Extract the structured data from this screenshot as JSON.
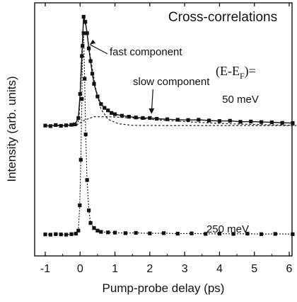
{
  "chart_data": {
    "type": "scatter",
    "title": "Cross-correlations",
    "xlabel": "Pump-probe delay (ps)",
    "ylabel": "Intensity (arb. units)",
    "xlim": [
      -1,
      6
    ],
    "ylim": [
      0,
      1
    ],
    "x_ticks": [
      "-1",
      "0",
      "1",
      "2",
      "3",
      "4",
      "5",
      "6"
    ],
    "grid": false,
    "legend_label": "(E-E",
    "legend_sub": "F",
    "legend_suffix": ")=",
    "annotations": [
      {
        "text": "fast component",
        "x": 0.25,
        "y": 0.86
      },
      {
        "text": "slow component",
        "x": 2.05,
        "y": 0.64
      }
    ],
    "series": [
      {
        "name": "50 meV",
        "label": "50 meV",
        "points": [
          [
            -1.0,
            0.515
          ],
          [
            -0.85,
            0.513
          ],
          [
            -0.7,
            0.517
          ],
          [
            -0.55,
            0.514
          ],
          [
            -0.4,
            0.516
          ],
          [
            -0.25,
            0.518
          ],
          [
            -0.15,
            0.52
          ],
          [
            -0.05,
            0.545
          ],
          [
            0.0,
            0.64
          ],
          [
            0.05,
            0.79
          ],
          [
            0.1,
            0.945
          ],
          [
            0.15,
            0.925
          ],
          [
            0.2,
            0.88
          ],
          [
            0.25,
            0.82
          ],
          [
            0.3,
            0.77
          ],
          [
            0.35,
            0.72
          ],
          [
            0.4,
            0.68
          ],
          [
            0.5,
            0.63
          ],
          [
            0.6,
            0.6
          ],
          [
            0.7,
            0.585
          ],
          [
            0.8,
            0.575
          ],
          [
            0.9,
            0.565
          ],
          [
            1.0,
            0.56
          ],
          [
            1.2,
            0.554
          ],
          [
            1.4,
            0.55
          ],
          [
            1.6,
            0.547
          ],
          [
            1.8,
            0.545
          ],
          [
            2.0,
            0.545
          ],
          [
            2.2,
            0.542
          ],
          [
            2.5,
            0.54
          ],
          [
            2.8,
            0.538
          ],
          [
            3.1,
            0.537
          ],
          [
            3.4,
            0.538
          ],
          [
            3.7,
            0.535
          ],
          [
            4.0,
            0.533
          ],
          [
            4.3,
            0.534
          ],
          [
            4.6,
            0.53
          ],
          [
            4.9,
            0.531
          ],
          [
            5.2,
            0.529
          ],
          [
            5.5,
            0.528
          ],
          [
            5.8,
            0.526
          ],
          [
            6.1,
            0.525
          ]
        ],
        "fit_fast": [
          [
            -1.0,
            0.515
          ],
          [
            -0.1,
            0.515
          ],
          [
            -0.03,
            0.54
          ],
          [
            0.03,
            0.75
          ],
          [
            0.1,
            0.94
          ],
          [
            0.18,
            0.9
          ],
          [
            0.3,
            0.78
          ],
          [
            0.45,
            0.66
          ],
          [
            0.6,
            0.58
          ],
          [
            0.8,
            0.54
          ],
          [
            1.1,
            0.522
          ],
          [
            1.5,
            0.516
          ],
          [
            2.5,
            0.515
          ],
          [
            6.2,
            0.515
          ]
        ],
        "fit_slow": [
          [
            -1.0,
            0.515
          ],
          [
            -0.1,
            0.517
          ],
          [
            0.1,
            0.535
          ],
          [
            0.4,
            0.55
          ],
          [
            0.8,
            0.55
          ],
          [
            1.5,
            0.545
          ],
          [
            2.5,
            0.535
          ],
          [
            3.5,
            0.527
          ],
          [
            4.5,
            0.521
          ],
          [
            5.5,
            0.518
          ],
          [
            6.2,
            0.516
          ]
        ]
      },
      {
        "name": "250 meV",
        "label": "250 meV",
        "points": [
          [
            -1.0,
            0.085
          ],
          [
            -0.85,
            0.084
          ],
          [
            -0.7,
            0.086
          ],
          [
            -0.55,
            0.085
          ],
          [
            -0.4,
            0.084
          ],
          [
            -0.25,
            0.086
          ],
          [
            -0.12,
            0.088
          ],
          [
            -0.05,
            0.1
          ],
          [
            -0.01,
            0.2
          ],
          [
            0.02,
            0.38
          ],
          [
            0.05,
            0.62
          ],
          [
            0.07,
            0.83
          ],
          [
            0.1,
            0.88
          ],
          [
            0.13,
            0.7
          ],
          [
            0.16,
            0.48
          ],
          [
            0.2,
            0.3
          ],
          [
            0.25,
            0.18
          ],
          [
            0.3,
            0.13
          ],
          [
            0.4,
            0.11
          ],
          [
            0.5,
            0.1
          ],
          [
            0.6,
            0.095
          ],
          [
            0.8,
            0.093
          ],
          [
            1.0,
            0.092
          ],
          [
            1.3,
            0.09
          ],
          [
            1.6,
            0.091
          ],
          [
            2.0,
            0.089
          ],
          [
            2.4,
            0.09
          ],
          [
            2.8,
            0.088
          ],
          [
            3.2,
            0.089
          ],
          [
            3.6,
            0.087
          ],
          [
            4.0,
            0.088
          ],
          [
            4.4,
            0.087
          ],
          [
            4.8,
            0.088
          ],
          [
            5.2,
            0.086
          ],
          [
            5.6,
            0.087
          ],
          [
            6.1,
            0.086
          ]
        ]
      }
    ]
  }
}
